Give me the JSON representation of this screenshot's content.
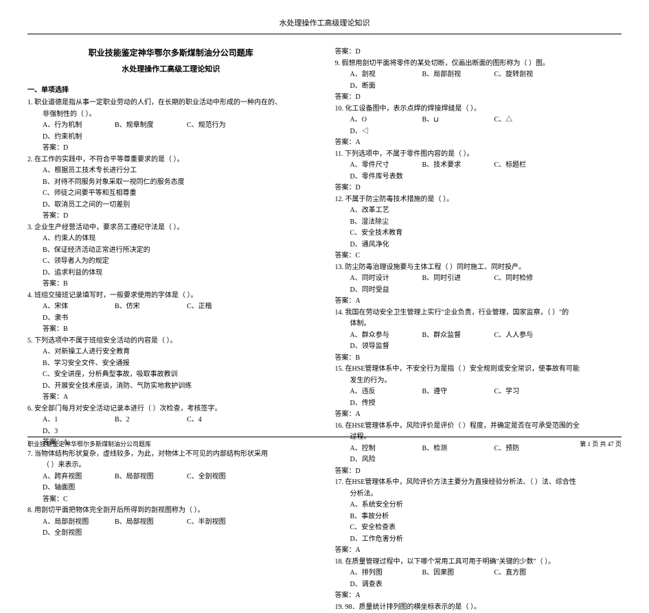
{
  "header": "水处理操作工高级理论知识",
  "title1": "职业技能鉴定神华鄂尔多斯煤制油分公司题库",
  "title2": "水处理操作工高级工理论知识",
  "sectionHead": "一、单项选择",
  "footer": {
    "left": "职业技能鉴定神华鄂尔多斯煤制油分公司题库",
    "right": "第 1 页    共 47 页"
  },
  "left": {
    "q1": {
      "n": "1.",
      "stem": "职业道德是指从事一定职业劳动的人们，在长期的职业活动中形成的一种内在的、",
      "stem2": "非强制性的（    ）。",
      "o": [
        "A、行为机制",
        "B、规章制度",
        "C、规范行为",
        "D、约束机制"
      ],
      "ans": "答案：D"
    },
    "q2": {
      "n": "2.",
      "stem": "在工作的实践中，不符合平等尊重要求的是（    ）。",
      "o": [
        "A、根据员工技术专长进行分工",
        "B、对待不同服务对象采取一视同仁的服务态度",
        "C、师徒之间要平等和互相尊重",
        "D、取消员工之间的一切差别"
      ],
      "ans": "答案：D"
    },
    "q3": {
      "n": "3.",
      "stem": "企业生产经营活动中，要求员工遵纪守法是（    ）。",
      "o": [
        "A、约束人的体现",
        "B、保证经济活动正常进行所决定的",
        "C、领导者人为的规定",
        "D、追求利益的体现"
      ],
      "ans": "答案：B"
    },
    "q4": {
      "n": "4.",
      "stem": "班组交接班记录填写时，一般要求使用的字体是（    ）。",
      "o": [
        "A、宋体",
        "B、仿宋",
        "C、正楷",
        "D、隶书"
      ],
      "ans": "答案：B"
    },
    "q5": {
      "n": "5.",
      "stem": "下列选项中不属于班组安全活动的内容是（    ）。",
      "o": [
        "A、对新操工人进行安全教育",
        "B、学习安全文件、安全通报",
        "C、安全讲座，分析典型事故，吸取事故教训",
        "D、开展安全技术座谈，消防、气防实地救护训练"
      ],
      "ans": "答案：A"
    },
    "q6": {
      "n": "6.",
      "stem": "安全部门每月对安全活动记录本进行（    ）次检查，考核签字。",
      "o": [
        "A、1",
        "B、2",
        "C、4",
        "D、3"
      ],
      "ans": "答案：A"
    },
    "q7": {
      "n": "7.",
      "stem": "当物体结构形状复杂，虚线较多，为此，对物体上不可见的内部结构形状采用",
      "stem2": "（    ）来表示。",
      "o": [
        "A、跨弃视图",
        "B、局部视图",
        "C、全剖视图",
        "D、轴面图"
      ],
      "ans": "答案：C"
    },
    "q8": {
      "n": "8.",
      "stem": "用剖切平面把物体完全剖开后所得到的剖视图称为（    ）。",
      "o": [
        "A、局部剖视图",
        "B、局部视图",
        "C、半剖视图",
        "D、全剖视图"
      ]
    }
  },
  "right": {
    "q8ans": "答案：D",
    "q9": {
      "n": "9.",
      "stem": "假想用剖切平面将零件的某处切断，仅画出断面的图形称为（    ）图。",
      "o": [
        "A、剖视",
        "B、局部剖视",
        "C、旋转剖视",
        "D、断面"
      ],
      "ans": "答案：D"
    },
    "q10": {
      "n": "10.",
      "stem": "化工设备图中，表示点焊的焊接焊缝是（    ）。",
      "o": [
        "A、O",
        "B、⊔",
        "C、△",
        "D、◁"
      ],
      "ans": "答案：A"
    },
    "q11": {
      "n": "11.",
      "stem": "下列选项中，不属于零件图内容的是（    ）。",
      "o": [
        "A、零件尺寸",
        "B、技术要求",
        "C、标题栏",
        "D、零件库号表数"
      ],
      "ans": "答案：D"
    },
    "q12": {
      "n": "12.",
      "stem": "不属于防尘防毒技术措施的是（    ）。",
      "o": [
        "A、改革工艺",
        "B、湿法除尘",
        "C、安全技术教育",
        "D、通风净化"
      ],
      "ans": "答案：C"
    },
    "q13": {
      "n": "13.",
      "stem": "防尘防毒治理设施要与主体工程（    ）同时施工、同时投产。",
      "o": [
        "A、同时设计",
        "B、同时引进",
        "C、同时检修",
        "D、同时受益"
      ],
      "ans": "答案：A"
    },
    "q14": {
      "n": "14.",
      "stem": "我国在劳动安全卫生管理上实行\"企业负责，行业管理，国家监察，（    ）\"的",
      "stem2": "体制。",
      "o": [
        "A、群众参与",
        "B、群众监督",
        "C、人人参与",
        "D、领导监督"
      ],
      "ans": "答案：B"
    },
    "q15": {
      "n": "15.",
      "stem": "在HSE管理体系中，不安全行为是指（    ）安全规则或安全常识，使事故有可能",
      "stem2": "发生的行为。",
      "o": [
        "A、违反",
        "B、遵守",
        "C、学习",
        "D、传授"
      ],
      "ans": "答案：A"
    },
    "q16": {
      "n": "16.",
      "stem": "在HSE管理体系中，风险评价是评价（    ）程度，并确定是否在可承受范围的全",
      "stem2": "过程。",
      "o": [
        "A、控制",
        "B、检测",
        "C、预防",
        "D、风险"
      ],
      "ans": "答案：D"
    },
    "q17": {
      "n": "17.",
      "stem": "在HSE管理体系中，风险评价方法主要分为直接经验分析法、（    ）法、综合性",
      "stem2": "分析法。",
      "o": [
        "A、系统安全分析",
        "B、事故分析",
        "C、安全检查表",
        "D、工作危害分析"
      ],
      "ans": "答案：A"
    },
    "q18": {
      "n": "18.",
      "stem": "在质量管理过程中，以下哪个常用工具可用于明确\"关键的少数\"（    ）。",
      "o": [
        "A、排列图",
        "B、因果图",
        "C、直方图",
        "D、调查表"
      ],
      "ans": "答案：A"
    },
    "q19": {
      "n": "19.",
      "stem": "98．质量统计排列图的横坐标表示的是（    ）。"
    }
  }
}
